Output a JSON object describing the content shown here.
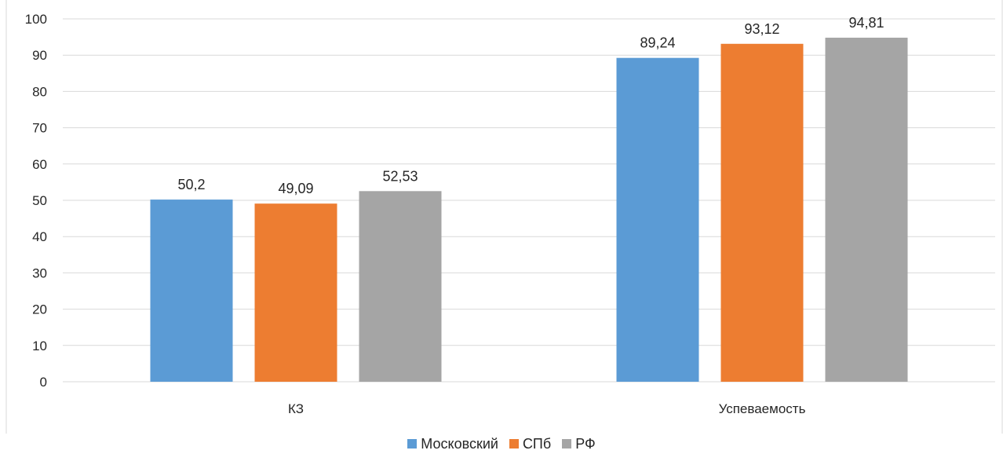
{
  "chart_data": {
    "type": "bar",
    "categories": [
      "КЗ",
      "Успеваемость"
    ],
    "series": [
      {
        "name": "Московский",
        "color": "#5b9bd5",
        "values": [
          50.2,
          89.24
        ],
        "labels": [
          "50,2",
          "89,24"
        ]
      },
      {
        "name": "СПб",
        "color": "#ed7d31",
        "values": [
          49.09,
          93.12
        ],
        "labels": [
          "49,09",
          "93,12"
        ]
      },
      {
        "name": "РФ",
        "color": "#a5a5a5",
        "values": [
          52.53,
          94.81
        ],
        "labels": [
          "52,53",
          "94,81"
        ]
      }
    ],
    "yticks": [
      "0",
      "10",
      "20",
      "30",
      "40",
      "50",
      "60",
      "70",
      "80",
      "90",
      "100"
    ],
    "ylim": [
      0,
      100
    ],
    "grid": true,
    "legend_position": "bottom"
  }
}
